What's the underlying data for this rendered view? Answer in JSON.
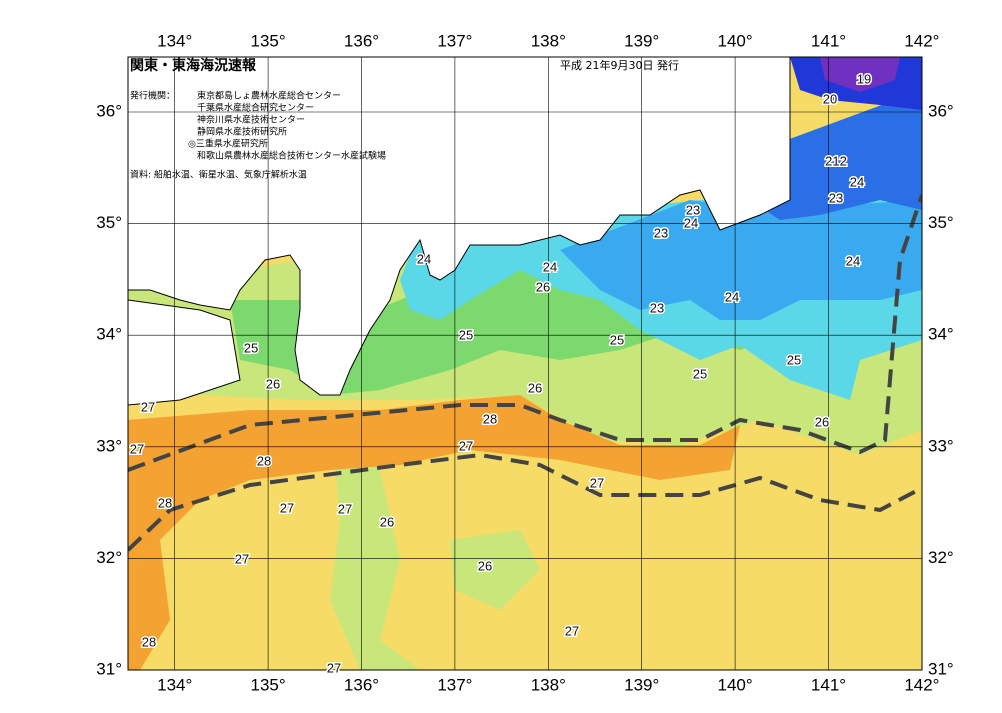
{
  "header": {
    "title": "関東・東海海況速報",
    "date": "平成 21年9月30日 発行"
  },
  "issuers": {
    "label": "発行機関：",
    "names": [
      "東京都島しょ農林水産総合センター",
      "千葉県水産総合研究センター",
      "神奈川県水産技術センター",
      "静岡県水産技術研究所",
      "◎三重県水産研究所",
      "和歌山県農林水産総合技術センター水産試験場"
    ]
  },
  "source": "資料: 船舶水温、衛星水温、気象庁解析水温",
  "lon_ticks": [
    "134°",
    "135°",
    "136°",
    "137°",
    "138°",
    "139°",
    "140°",
    "141°",
    "142°"
  ],
  "lat_ticks": [
    "31°",
    "32°",
    "33°",
    "34°",
    "35°",
    "36°"
  ],
  "contour_labels": [
    "19",
    "20",
    "212",
    "24",
    "23",
    "23",
    "24",
    "23",
    "24",
    "24",
    "26",
    "24",
    "24",
    "23",
    "25",
    "25",
    "25",
    "25",
    "25",
    "26",
    "26",
    "27",
    "28",
    "26",
    "27",
    "27",
    "28",
    "27",
    "28",
    "27",
    "27",
    "26",
    "27",
    "26",
    "28",
    "27",
    "27"
  ]
}
